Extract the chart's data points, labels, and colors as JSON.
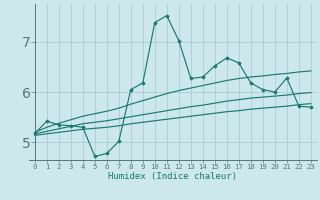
{
  "xlabel": "Humidex (Indice chaleur)",
  "bg_color": "#cce8ec",
  "grid_color": "#aacdd4",
  "line_color": "#1a7a6e",
  "xlim": [
    -0.5,
    23.5
  ],
  "ylim": [
    4.65,
    7.75
  ],
  "xticks": [
    0,
    1,
    2,
    3,
    4,
    5,
    6,
    7,
    8,
    9,
    10,
    11,
    12,
    13,
    14,
    15,
    16,
    17,
    18,
    19,
    20,
    21,
    22,
    23
  ],
  "yticks": [
    5,
    6,
    7
  ],
  "x": [
    0,
    1,
    2,
    3,
    4,
    5,
    6,
    7,
    8,
    9,
    10,
    11,
    12,
    13,
    14,
    15,
    16,
    17,
    18,
    19,
    20,
    21,
    22,
    23
  ],
  "y_main": [
    5.18,
    5.42,
    5.35,
    5.33,
    5.3,
    4.72,
    4.78,
    5.02,
    6.05,
    6.18,
    7.38,
    7.52,
    7.02,
    6.27,
    6.3,
    6.52,
    6.68,
    6.58,
    6.18,
    6.05,
    6.0,
    6.28,
    5.72,
    5.7
  ],
  "y_upper": [
    5.2,
    5.3,
    5.38,
    5.45,
    5.52,
    5.57,
    5.62,
    5.68,
    5.76,
    5.83,
    5.9,
    5.97,
    6.03,
    6.08,
    6.13,
    6.18,
    6.23,
    6.27,
    6.3,
    6.32,
    6.35,
    6.37,
    6.4,
    6.42
  ],
  "y_mean": [
    5.17,
    5.22,
    5.27,
    5.32,
    5.37,
    5.4,
    5.43,
    5.47,
    5.51,
    5.55,
    5.59,
    5.63,
    5.67,
    5.71,
    5.74,
    5.78,
    5.82,
    5.85,
    5.88,
    5.9,
    5.92,
    5.94,
    5.97,
    5.99
  ],
  "y_lower": [
    5.14,
    5.17,
    5.2,
    5.23,
    5.26,
    5.28,
    5.3,
    5.33,
    5.37,
    5.4,
    5.43,
    5.46,
    5.49,
    5.52,
    5.55,
    5.58,
    5.61,
    5.63,
    5.66,
    5.68,
    5.7,
    5.72,
    5.75,
    5.77
  ]
}
